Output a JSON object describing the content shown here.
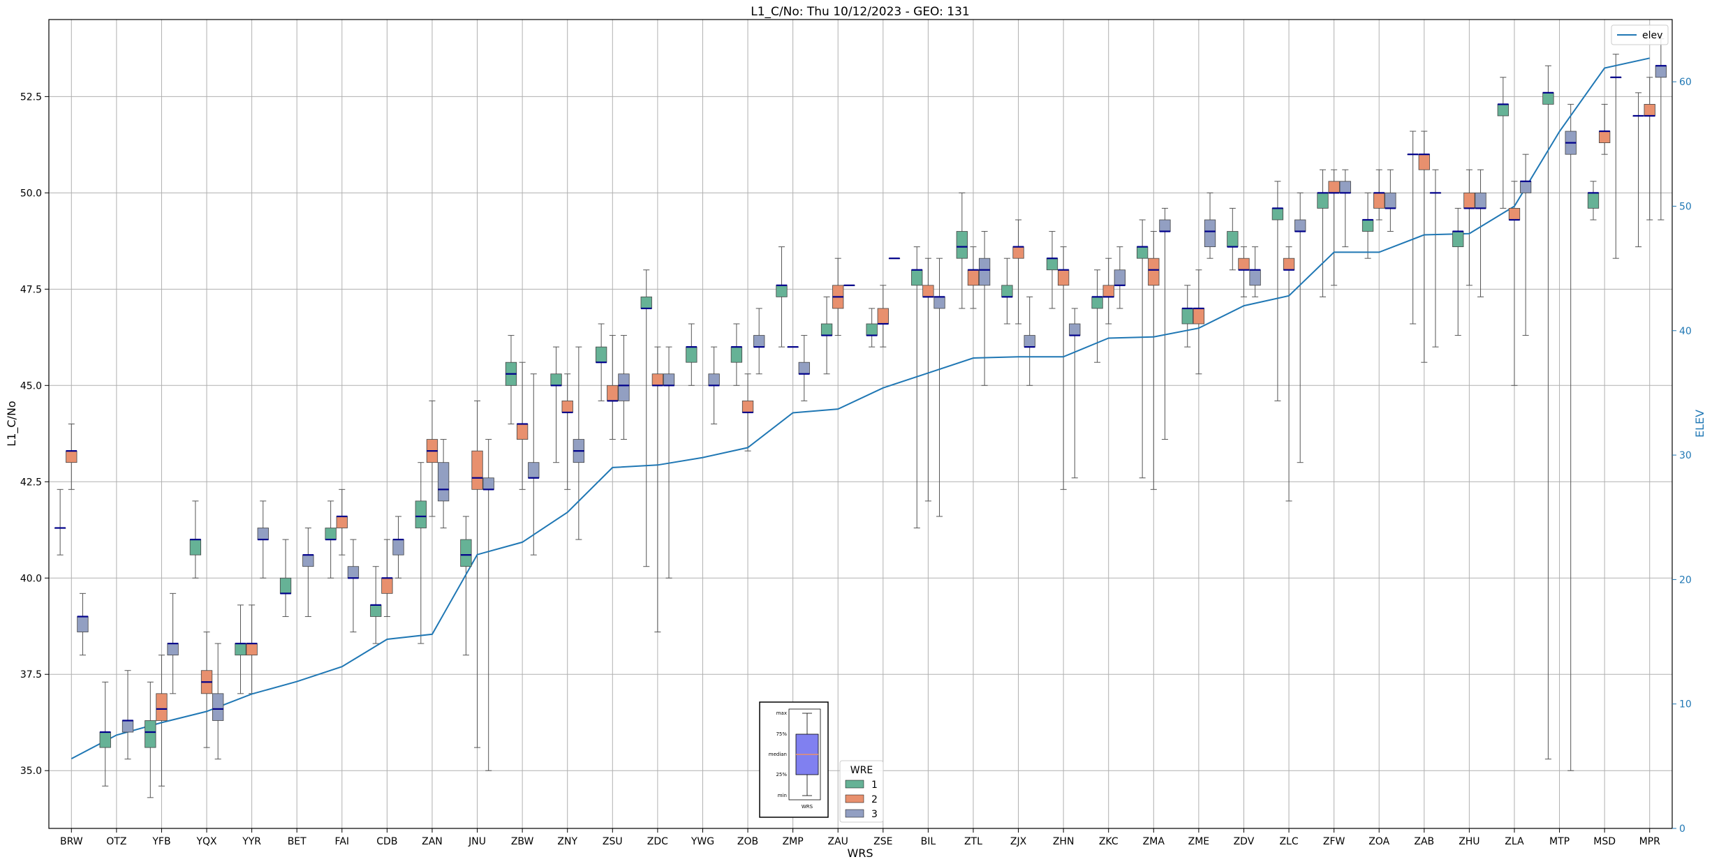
{
  "chart_data": {
    "type": "box",
    "title": "L1_C/No: Thu 10/12/2023 - GEO: 131",
    "xlabel": "WRS",
    "ylabel": "L1_C/No",
    "ylabel_right": "ELEV",
    "ylim": [
      33.5,
      54.5
    ],
    "ylim_right": [
      0,
      65
    ],
    "yticks": [
      "35.0",
      "37.5",
      "40.0",
      "42.5",
      "45.0",
      "47.5",
      "50.0",
      "52.5"
    ],
    "yticks_right": [
      "0",
      "10",
      "20",
      "30",
      "40",
      "50",
      "60"
    ],
    "grid": true,
    "categories": [
      "BRW",
      "OTZ",
      "YFB",
      "YQX",
      "YYR",
      "BET",
      "FAI",
      "CDB",
      "ZAN",
      "JNU",
      "ZBW",
      "ZNY",
      "ZSU",
      "ZDC",
      "YWG",
      "ZOB",
      "ZMP",
      "ZAU",
      "ZSE",
      "BIL",
      "ZTL",
      "ZJX",
      "ZHN",
      "ZKC",
      "ZMA",
      "ZME",
      "ZDV",
      "ZLC",
      "ZFW",
      "ZOA",
      "ZAB",
      "ZHU",
      "ZLA",
      "MTP",
      "MSD",
      "MPR"
    ],
    "wre_colors": {
      "1": "#66b296",
      "2": "#e8906e",
      "3": "#929fc2"
    },
    "median_color": "#00008b",
    "line_color": "#1f77b4",
    "box_legend": {
      "title": "WRE",
      "items": [
        "1",
        "2",
        "3"
      ]
    },
    "line_legend": {
      "items": [
        "elev"
      ]
    },
    "inset_legend": {
      "labels": [
        "max",
        "75%",
        "median",
        "25%",
        "min"
      ],
      "xtick": "WRS",
      "fill": "#8080f0",
      "median_color": "#e8906e"
    },
    "boxes": [
      {
        "station": "BRW",
        "wre": "1",
        "min": 40.6,
        "q1": 41.3,
        "median": 41.3,
        "q3": 41.3,
        "max": 42.3
      },
      {
        "station": "BRW",
        "wre": "2",
        "min": 42.3,
        "q1": 43.0,
        "median": 43.3,
        "q3": 43.3,
        "max": 44.0
      },
      {
        "station": "BRW",
        "wre": "3",
        "min": 38.0,
        "q1": 38.6,
        "median": 39.0,
        "q3": 39.0,
        "max": 39.6
      },
      {
        "station": "OTZ",
        "wre": "1",
        "min": 34.6,
        "q1": 35.6,
        "median": 36.0,
        "q3": 36.0,
        "max": 37.3
      },
      {
        "station": "OTZ",
        "wre": "3",
        "min": 35.3,
        "q1": 36.0,
        "median": 36.3,
        "q3": 36.3,
        "max": 37.6
      },
      {
        "station": "YFB",
        "wre": "1",
        "min": 34.3,
        "q1": 35.6,
        "median": 36.0,
        "q3": 36.3,
        "max": 37.3
      },
      {
        "station": "YFB",
        "wre": "2",
        "min": 34.6,
        "q1": 36.3,
        "median": 36.6,
        "q3": 37.0,
        "max": 38.0
      },
      {
        "station": "YFB",
        "wre": "3",
        "min": 37.0,
        "q1": 38.0,
        "median": 38.3,
        "q3": 38.3,
        "max": 39.6
      },
      {
        "station": "YQX",
        "wre": "1",
        "min": 40.0,
        "q1": 40.6,
        "median": 41.0,
        "q3": 41.0,
        "max": 42.0
      },
      {
        "station": "YQX",
        "wre": "2",
        "min": 35.6,
        "q1": 37.0,
        "median": 37.3,
        "q3": 37.6,
        "max": 38.6
      },
      {
        "station": "YQX",
        "wre": "3",
        "min": 35.3,
        "q1": 36.3,
        "median": 36.6,
        "q3": 37.0,
        "max": 38.3
      },
      {
        "station": "YYR",
        "wre": "1",
        "min": 37.0,
        "q1": 38.0,
        "median": 38.3,
        "q3": 38.3,
        "max": 39.3
      },
      {
        "station": "YYR",
        "wre": "2",
        "min": 37.0,
        "q1": 38.0,
        "median": 38.3,
        "q3": 38.3,
        "max": 39.3
      },
      {
        "station": "YYR",
        "wre": "3",
        "min": 40.0,
        "q1": 41.0,
        "median": 41.0,
        "q3": 41.3,
        "max": 42.0
      },
      {
        "station": "BET",
        "wre": "1",
        "min": 39.0,
        "q1": 39.6,
        "median": 39.6,
        "q3": 40.0,
        "max": 41.0
      },
      {
        "station": "BET",
        "wre": "3",
        "min": 39.0,
        "q1": 40.3,
        "median": 40.6,
        "q3": 40.6,
        "max": 41.3
      },
      {
        "station": "FAI",
        "wre": "1",
        "min": 40.0,
        "q1": 41.0,
        "median": 41.0,
        "q3": 41.3,
        "max": 42.0
      },
      {
        "station": "FAI",
        "wre": "2",
        "min": 40.6,
        "q1": 41.3,
        "median": 41.6,
        "q3": 41.6,
        "max": 42.3
      },
      {
        "station": "FAI",
        "wre": "3",
        "min": 38.6,
        "q1": 40.0,
        "median": 40.0,
        "q3": 40.3,
        "max": 41.0
      },
      {
        "station": "CDB",
        "wre": "1",
        "min": 38.3,
        "q1": 39.0,
        "median": 39.3,
        "q3": 39.3,
        "max": 40.3
      },
      {
        "station": "CDB",
        "wre": "2",
        "min": 39.0,
        "q1": 39.6,
        "median": 40.0,
        "q3": 40.0,
        "max": 41.0
      },
      {
        "station": "CDB",
        "wre": "3",
        "min": 40.0,
        "q1": 40.6,
        "median": 41.0,
        "q3": 41.0,
        "max": 41.6
      },
      {
        "station": "ZAN",
        "wre": "1",
        "min": 38.3,
        "q1": 41.3,
        "median": 41.6,
        "q3": 42.0,
        "max": 43.0
      },
      {
        "station": "ZAN",
        "wre": "2",
        "min": 41.6,
        "q1": 43.0,
        "median": 43.3,
        "q3": 43.6,
        "max": 44.6
      },
      {
        "station": "ZAN",
        "wre": "3",
        "min": 41.3,
        "q1": 42.0,
        "median": 42.3,
        "q3": 43.0,
        "max": 43.6
      },
      {
        "station": "JNU",
        "wre": "1",
        "min": 38.0,
        "q1": 40.3,
        "median": 40.6,
        "q3": 41.0,
        "max": 41.6
      },
      {
        "station": "JNU",
        "wre": "2",
        "min": 35.6,
        "q1": 42.3,
        "median": 42.6,
        "q3": 43.3,
        "max": 44.6
      },
      {
        "station": "JNU",
        "wre": "3",
        "min": 35.0,
        "q1": 42.3,
        "median": 42.3,
        "q3": 42.6,
        "max": 43.6
      },
      {
        "station": "ZBW",
        "wre": "1",
        "min": 44.0,
        "q1": 45.0,
        "median": 45.3,
        "q3": 45.6,
        "max": 46.3
      },
      {
        "station": "ZBW",
        "wre": "2",
        "min": 42.3,
        "q1": 43.6,
        "median": 44.0,
        "q3": 44.0,
        "max": 45.6
      },
      {
        "station": "ZBW",
        "wre": "3",
        "min": 40.6,
        "q1": 42.6,
        "median": 42.6,
        "q3": 43.0,
        "max": 45.3
      },
      {
        "station": "ZNY",
        "wre": "1",
        "min": 43.0,
        "q1": 45.0,
        "median": 45.0,
        "q3": 45.3,
        "max": 46.0
      },
      {
        "station": "ZNY",
        "wre": "2",
        "min": 42.3,
        "q1": 44.3,
        "median": 44.3,
        "q3": 44.6,
        "max": 45.3
      },
      {
        "station": "ZNY",
        "wre": "3",
        "min": 41.0,
        "q1": 43.0,
        "median": 43.3,
        "q3": 43.6,
        "max": 46.0
      },
      {
        "station": "ZSU",
        "wre": "1",
        "min": 44.6,
        "q1": 45.6,
        "median": 45.6,
        "q3": 46.0,
        "max": 46.6
      },
      {
        "station": "ZSU",
        "wre": "2",
        "min": 43.6,
        "q1": 44.6,
        "median": 44.6,
        "q3": 45.0,
        "max": 46.3
      },
      {
        "station": "ZSU",
        "wre": "3",
        "min": 43.6,
        "q1": 44.6,
        "median": 45.0,
        "q3": 45.3,
        "max": 46.3
      },
      {
        "station": "ZDC",
        "wre": "1",
        "min": 40.3,
        "q1": 47.0,
        "median": 47.0,
        "q3": 47.3,
        "max": 48.0
      },
      {
        "station": "ZDC",
        "wre": "2",
        "min": 38.6,
        "q1": 45.0,
        "median": 45.0,
        "q3": 45.3,
        "max": 46.0
      },
      {
        "station": "ZDC",
        "wre": "3",
        "min": 40.0,
        "q1": 45.0,
        "median": 45.0,
        "q3": 45.3,
        "max": 46.0
      },
      {
        "station": "YWG",
        "wre": "1",
        "min": 45.0,
        "q1": 45.6,
        "median": 46.0,
        "q3": 46.0,
        "max": 46.6
      },
      {
        "station": "YWG",
        "wre": "3",
        "min": 44.0,
        "q1": 45.0,
        "median": 45.0,
        "q3": 45.3,
        "max": 46.0
      },
      {
        "station": "ZOB",
        "wre": "1",
        "min": 45.0,
        "q1": 45.6,
        "median": 46.0,
        "q3": 46.0,
        "max": 46.6
      },
      {
        "station": "ZOB",
        "wre": "2",
        "min": 43.3,
        "q1": 44.3,
        "median": 44.3,
        "q3": 44.6,
        "max": 45.3
      },
      {
        "station": "ZOB",
        "wre": "3",
        "min": 45.3,
        "q1": 46.0,
        "median": 46.0,
        "q3": 46.3,
        "max": 47.0
      },
      {
        "station": "ZMP",
        "wre": "1",
        "min": 46.0,
        "q1": 47.3,
        "median": 47.6,
        "q3": 47.6,
        "max": 48.6
      },
      {
        "station": "ZMP",
        "wre": "2",
        "min": 46.0,
        "q1": 46.0,
        "median": 46.0,
        "q3": 46.0,
        "max": 46.0
      },
      {
        "station": "ZMP",
        "wre": "3",
        "min": 44.6,
        "q1": 45.3,
        "median": 45.3,
        "q3": 45.6,
        "max": 46.3
      },
      {
        "station": "ZAU",
        "wre": "1",
        "min": 45.3,
        "q1": 46.3,
        "median": 46.3,
        "q3": 46.6,
        "max": 47.3
      },
      {
        "station": "ZAU",
        "wre": "2",
        "min": 46.3,
        "q1": 47.0,
        "median": 47.3,
        "q3": 47.6,
        "max": 48.3
      },
      {
        "station": "ZAU",
        "wre": "3",
        "min": 47.6,
        "q1": 47.6,
        "median": 47.6,
        "q3": 47.6,
        "max": 47.6
      },
      {
        "station": "ZSE",
        "wre": "1",
        "min": 46.0,
        "q1": 46.3,
        "median": 46.3,
        "q3": 46.6,
        "max": 47.0
      },
      {
        "station": "ZSE",
        "wre": "2",
        "min": 46.0,
        "q1": 46.6,
        "median": 46.6,
        "q3": 47.0,
        "max": 47.6
      },
      {
        "station": "ZSE",
        "wre": "3",
        "min": 48.3,
        "q1": 48.3,
        "median": 48.3,
        "q3": 48.3,
        "max": 48.3
      },
      {
        "station": "BIL",
        "wre": "1",
        "min": 41.3,
        "q1": 47.6,
        "median": 48.0,
        "q3": 48.0,
        "max": 48.6
      },
      {
        "station": "BIL",
        "wre": "2",
        "min": 42.0,
        "q1": 47.3,
        "median": 47.3,
        "q3": 47.6,
        "max": 48.3
      },
      {
        "station": "BIL",
        "wre": "3",
        "min": 41.6,
        "q1": 47.0,
        "median": 47.3,
        "q3": 47.3,
        "max": 48.3
      },
      {
        "station": "ZTL",
        "wre": "1",
        "min": 47.0,
        "q1": 48.3,
        "median": 48.6,
        "q3": 49.0,
        "max": 50.0
      },
      {
        "station": "ZTL",
        "wre": "2",
        "min": 47.0,
        "q1": 47.6,
        "median": 48.0,
        "q3": 48.0,
        "max": 48.6
      },
      {
        "station": "ZTL",
        "wre": "3",
        "min": 45.0,
        "q1": 47.6,
        "median": 48.0,
        "q3": 48.3,
        "max": 49.0
      },
      {
        "station": "ZJX",
        "wre": "1",
        "min": 46.6,
        "q1": 47.3,
        "median": 47.3,
        "q3": 47.6,
        "max": 48.3
      },
      {
        "station": "ZJX",
        "wre": "2",
        "min": 46.6,
        "q1": 48.3,
        "median": 48.6,
        "q3": 48.6,
        "max": 49.3
      },
      {
        "station": "ZJX",
        "wre": "3",
        "min": 45.0,
        "q1": 46.0,
        "median": 46.0,
        "q3": 46.3,
        "max": 47.3
      },
      {
        "station": "ZHN",
        "wre": "1",
        "min": 47.0,
        "q1": 48.0,
        "median": 48.3,
        "q3": 48.3,
        "max": 49.0
      },
      {
        "station": "ZHN",
        "wre": "2",
        "min": 42.3,
        "q1": 47.6,
        "median": 48.0,
        "q3": 48.0,
        "max": 48.6
      },
      {
        "station": "ZHN",
        "wre": "3",
        "min": 42.6,
        "q1": 46.3,
        "median": 46.3,
        "q3": 46.6,
        "max": 47.0
      },
      {
        "station": "ZKC",
        "wre": "1",
        "min": 45.6,
        "q1": 47.0,
        "median": 47.3,
        "q3": 47.3,
        "max": 48.0
      },
      {
        "station": "ZKC",
        "wre": "2",
        "min": 46.6,
        "q1": 47.3,
        "median": 47.3,
        "q3": 47.6,
        "max": 48.3
      },
      {
        "station": "ZKC",
        "wre": "3",
        "min": 47.0,
        "q1": 47.6,
        "median": 47.6,
        "q3": 48.0,
        "max": 48.6
      },
      {
        "station": "ZMA",
        "wre": "1",
        "min": 42.6,
        "q1": 48.3,
        "median": 48.6,
        "q3": 48.6,
        "max": 49.3
      },
      {
        "station": "ZMA",
        "wre": "2",
        "min": 42.3,
        "q1": 47.6,
        "median": 48.0,
        "q3": 48.3,
        "max": 49.0
      },
      {
        "station": "ZMA",
        "wre": "3",
        "min": 43.6,
        "q1": 49.0,
        "median": 49.0,
        "q3": 49.3,
        "max": 49.6
      },
      {
        "station": "ZME",
        "wre": "1",
        "min": 46.0,
        "q1": 46.6,
        "median": 47.0,
        "q3": 47.0,
        "max": 47.6
      },
      {
        "station": "ZME",
        "wre": "2",
        "min": 45.3,
        "q1": 46.6,
        "median": 47.0,
        "q3": 47.0,
        "max": 48.0
      },
      {
        "station": "ZME",
        "wre": "3",
        "min": 48.3,
        "q1": 48.6,
        "median": 49.0,
        "q3": 49.3,
        "max": 50.0
      },
      {
        "station": "ZDV",
        "wre": "1",
        "min": 48.0,
        "q1": 48.6,
        "median": 48.6,
        "q3": 49.0,
        "max": 49.6
      },
      {
        "station": "ZDV",
        "wre": "2",
        "min": 47.3,
        "q1": 48.0,
        "median": 48.0,
        "q3": 48.3,
        "max": 48.6
      },
      {
        "station": "ZDV",
        "wre": "3",
        "min": 47.3,
        "q1": 47.6,
        "median": 48.0,
        "q3": 48.0,
        "max": 48.6
      },
      {
        "station": "ZLC",
        "wre": "1",
        "min": 44.6,
        "q1": 49.3,
        "median": 49.6,
        "q3": 49.6,
        "max": 50.3
      },
      {
        "station": "ZLC",
        "wre": "2",
        "min": 42.0,
        "q1": 48.0,
        "median": 48.0,
        "q3": 48.3,
        "max": 48.6
      },
      {
        "station": "ZLC",
        "wre": "3",
        "min": 43.0,
        "q1": 49.0,
        "median": 49.0,
        "q3": 49.3,
        "max": 50.0
      },
      {
        "station": "ZFW",
        "wre": "1",
        "min": 47.3,
        "q1": 49.6,
        "median": 50.0,
        "q3": 50.0,
        "max": 50.6
      },
      {
        "station": "ZFW",
        "wre": "2",
        "min": 47.6,
        "q1": 50.0,
        "median": 50.0,
        "q3": 50.3,
        "max": 50.6
      },
      {
        "station": "ZFW",
        "wre": "3",
        "min": 48.6,
        "q1": 50.0,
        "median": 50.0,
        "q3": 50.3,
        "max": 50.6
      },
      {
        "station": "ZOA",
        "wre": "1",
        "min": 48.3,
        "q1": 49.0,
        "median": 49.3,
        "q3": 49.3,
        "max": 50.0
      },
      {
        "station": "ZOA",
        "wre": "2",
        "min": 49.3,
        "q1": 49.6,
        "median": 50.0,
        "q3": 50.0,
        "max": 50.6
      },
      {
        "station": "ZOA",
        "wre": "3",
        "min": 49.0,
        "q1": 49.6,
        "median": 49.6,
        "q3": 50.0,
        "max": 50.6
      },
      {
        "station": "ZAB",
        "wre": "1",
        "min": 46.6,
        "q1": 51.0,
        "median": 51.0,
        "q3": 51.0,
        "max": 51.6
      },
      {
        "station": "ZAB",
        "wre": "2",
        "min": 45.6,
        "q1": 50.6,
        "median": 51.0,
        "q3": 51.0,
        "max": 51.6
      },
      {
        "station": "ZAB",
        "wre": "3",
        "min": 46.0,
        "q1": 50.0,
        "median": 50.0,
        "q3": 50.0,
        "max": 50.6
      },
      {
        "station": "ZHU",
        "wre": "1",
        "min": 46.3,
        "q1": 48.6,
        "median": 49.0,
        "q3": 49.0,
        "max": 49.6
      },
      {
        "station": "ZHU",
        "wre": "2",
        "min": 47.6,
        "q1": 49.6,
        "median": 49.6,
        "q3": 50.0,
        "max": 50.6
      },
      {
        "station": "ZHU",
        "wre": "3",
        "min": 47.3,
        "q1": 49.6,
        "median": 49.6,
        "q3": 50.0,
        "max": 50.6
      },
      {
        "station": "ZLA",
        "wre": "1",
        "min": 49.6,
        "q1": 52.0,
        "median": 52.3,
        "q3": 52.3,
        "max": 53.0
      },
      {
        "station": "ZLA",
        "wre": "2",
        "min": 45.0,
        "q1": 49.3,
        "median": 49.3,
        "q3": 49.6,
        "max": 50.3
      },
      {
        "station": "ZLA",
        "wre": "3",
        "min": 46.3,
        "q1": 50.0,
        "median": 50.3,
        "q3": 50.3,
        "max": 51.0
      },
      {
        "station": "MTP",
        "wre": "1",
        "min": 35.3,
        "q1": 52.3,
        "median": 52.6,
        "q3": 52.6,
        "max": 53.3
      },
      {
        "station": "MTP",
        "wre": "3",
        "min": 35.0,
        "q1": 51.0,
        "median": 51.3,
        "q3": 51.6,
        "max": 52.3
      },
      {
        "station": "MSD",
        "wre": "1",
        "min": 49.3,
        "q1": 49.6,
        "median": 50.0,
        "q3": 50.0,
        "max": 50.3
      },
      {
        "station": "MSD",
        "wre": "2",
        "min": 51.0,
        "q1": 51.3,
        "median": 51.6,
        "q3": 51.6,
        "max": 52.3
      },
      {
        "station": "MSD",
        "wre": "3",
        "min": 48.3,
        "q1": 53.0,
        "median": 53.0,
        "q3": 53.0,
        "max": 53.6
      },
      {
        "station": "MPR",
        "wre": "1",
        "min": 48.6,
        "q1": 52.0,
        "median": 52.0,
        "q3": 52.0,
        "max": 52.6
      },
      {
        "station": "MPR",
        "wre": "2",
        "min": 49.3,
        "q1": 52.0,
        "median": 52.0,
        "q3": 52.3,
        "max": 53.0
      },
      {
        "station": "MPR",
        "wre": "3",
        "min": 49.3,
        "q1": 53.0,
        "median": 53.3,
        "q3": 53.3,
        "max": 54.0
      }
    ],
    "series": [
      {
        "name": "elev",
        "axis": "right",
        "values": [
          5.6,
          7.5,
          8.5,
          9.4,
          10.8,
          11.8,
          13.0,
          15.2,
          15.6,
          22.0,
          23.0,
          25.4,
          29.0,
          29.2,
          29.8,
          30.6,
          33.4,
          33.7,
          35.4,
          36.6,
          37.8,
          37.9,
          37.9,
          39.4,
          39.5,
          40.2,
          42.0,
          42.8,
          46.3,
          46.3,
          47.7,
          47.8,
          50.0,
          56.0,
          61.1,
          61.9
        ]
      }
    ]
  }
}
